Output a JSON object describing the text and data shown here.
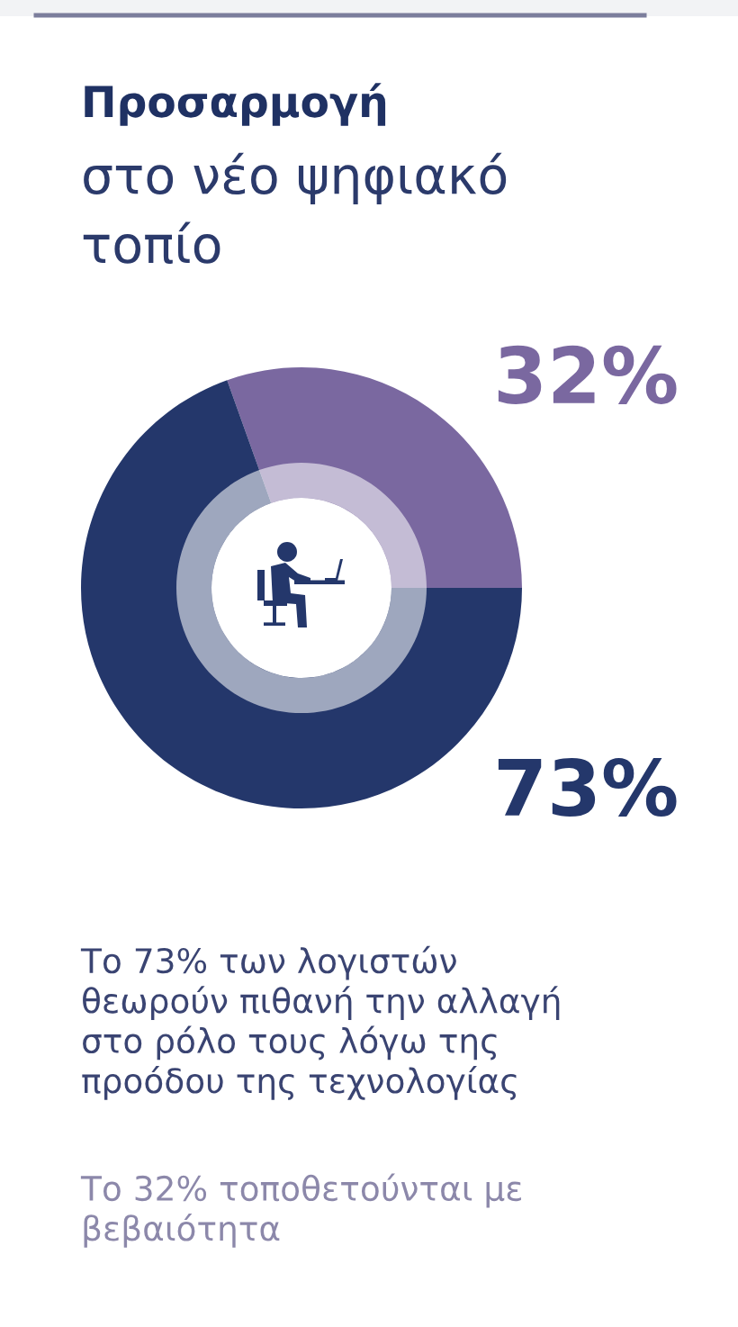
{
  "chart_data": {
    "type": "donut",
    "title": "Προσαρμογή",
    "subtitle": "στο νέο ψηφιακό\nτοπίο",
    "categories": [
      null,
      null
    ],
    "values": [
      32,
      73
    ],
    "colors": [
      "#7a68a0",
      "#24376b"
    ],
    "value_labels": [
      "32%",
      "73%"
    ],
    "annotations": [
      "Το 73% των λογιστών\nθεωρούν πιθανή την αλλαγή\nστο ρόλο τους λόγω της\nπροόδου της τεχνολογίας",
      "Το 32% τοποθετούνται με\nβεβαιότητα"
    ]
  }
}
